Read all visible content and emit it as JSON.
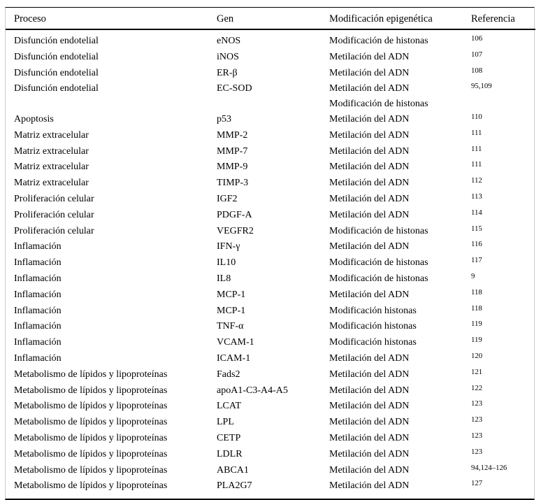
{
  "colors": {
    "background": "#ffffff",
    "text": "#000000",
    "rule": "#000000",
    "frame_edge": "#cccccc"
  },
  "table": {
    "columns": [
      "Proceso",
      "Gen",
      "Modificación epigenética",
      "Referencia"
    ],
    "rows": [
      {
        "proceso": "Disfunción endotelial",
        "gen": "eNOS",
        "modificaciones": [
          "Modificación de histonas"
        ],
        "referencia": "106"
      },
      {
        "proceso": "Disfunción endotelial",
        "gen": "iNOS",
        "modificaciones": [
          "Metilación del ADN"
        ],
        "referencia": "107"
      },
      {
        "proceso": "Disfunción endotelial",
        "gen": "ER-β",
        "modificaciones": [
          "Metilación del ADN"
        ],
        "referencia": "108"
      },
      {
        "proceso": "Disfunción endotelial",
        "gen": "EC-SOD",
        "modificaciones": [
          "Metilación del ADN",
          "Modificación de histonas"
        ],
        "referencia": "95,109"
      },
      {
        "proceso": "Apoptosis",
        "gen": "p53",
        "modificaciones": [
          "Metilación del ADN"
        ],
        "referencia": "110"
      },
      {
        "proceso": "Matriz extracelular",
        "gen": "MMP-2",
        "modificaciones": [
          "Metilación del ADN"
        ],
        "referencia": "111"
      },
      {
        "proceso": "Matriz extracelular",
        "gen": "MMP-7",
        "modificaciones": [
          "Metilación del ADN"
        ],
        "referencia": "111"
      },
      {
        "proceso": "Matriz extracelular",
        "gen": "MMP-9",
        "modificaciones": [
          "Metilación del ADN"
        ],
        "referencia": "111"
      },
      {
        "proceso": "Matriz extracelular",
        "gen": "TIMP-3",
        "modificaciones": [
          "Metilación del ADN"
        ],
        "referencia": "112"
      },
      {
        "proceso": "Proliferación celular",
        "gen": "IGF2",
        "modificaciones": [
          "Metilación del ADN"
        ],
        "referencia": "113"
      },
      {
        "proceso": "Proliferación celular",
        "gen": "PDGF-A",
        "modificaciones": [
          "Metilación del ADN"
        ],
        "referencia": "114"
      },
      {
        "proceso": "Proliferación celular",
        "gen": "VEGFR2",
        "modificaciones": [
          "Modificación de histonas"
        ],
        "referencia": "115"
      },
      {
        "proceso": "Inflamación",
        "gen": "IFN-γ",
        "modificaciones": [
          "Metilación del ADN"
        ],
        "referencia": "116"
      },
      {
        "proceso": "Inflamación",
        "gen": "IL10",
        "modificaciones": [
          "Modificación de histonas"
        ],
        "referencia": "117"
      },
      {
        "proceso": "Inflamación",
        "gen": "IL8",
        "modificaciones": [
          "Modificación de histonas"
        ],
        "referencia": "9"
      },
      {
        "proceso": "Inflamación",
        "gen": "MCP-1",
        "modificaciones": [
          "Metilación del ADN"
        ],
        "referencia": "118"
      },
      {
        "proceso": "Inflamación",
        "gen": "MCP-1",
        "modificaciones": [
          "Modificación histonas"
        ],
        "referencia": "118"
      },
      {
        "proceso": "Inflamación",
        "gen": "TNF-α",
        "modificaciones": [
          "Modificación histonas"
        ],
        "referencia": "119"
      },
      {
        "proceso": "Inflamación",
        "gen": "VCAM-1",
        "modificaciones": [
          "Modificación histonas"
        ],
        "referencia": "119"
      },
      {
        "proceso": "Inflamación",
        "gen": "ICAM-1",
        "modificaciones": [
          "Metilación del ADN"
        ],
        "referencia": "120"
      },
      {
        "proceso": "Metabolismo de lípidos y lipoproteínas",
        "gen": "Fads2",
        "modificaciones": [
          "Metilación del ADN"
        ],
        "referencia": "121"
      },
      {
        "proceso": "Metabolismo de lípidos y lipoproteínas",
        "gen": "apoA1-C3-A4-A5",
        "modificaciones": [
          "Metilación del ADN"
        ],
        "referencia": "122"
      },
      {
        "proceso": "Metabolismo de lípidos y lipoproteínas",
        "gen": "LCAT",
        "modificaciones": [
          "Metilación del ADN"
        ],
        "referencia": "123"
      },
      {
        "proceso": "Metabolismo de lípidos y lipoproteínas",
        "gen": "LPL",
        "modificaciones": [
          "Metilación del ADN"
        ],
        "referencia": "123"
      },
      {
        "proceso": "Metabolismo de lípidos y lipoproteínas",
        "gen": "CETP",
        "modificaciones": [
          "Metilación del ADN"
        ],
        "referencia": "123"
      },
      {
        "proceso": "Metabolismo de lípidos y lipoproteínas",
        "gen": "LDLR",
        "modificaciones": [
          "Metilación del ADN"
        ],
        "referencia": "123"
      },
      {
        "proceso": "Metabolismo de lípidos y lipoproteínas",
        "gen": "ABCA1",
        "modificaciones": [
          "Metilación del ADN"
        ],
        "referencia": "94,124–126"
      },
      {
        "proceso": "Metabolismo de lípidos y lipoproteínas",
        "gen": "PLA2G7",
        "modificaciones": [
          "Metilación del ADN"
        ],
        "referencia": "127"
      }
    ]
  }
}
